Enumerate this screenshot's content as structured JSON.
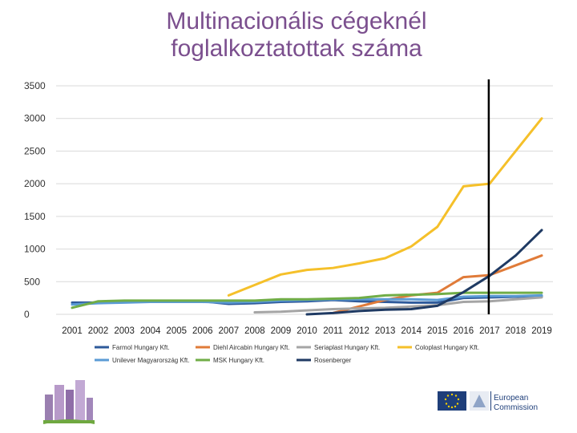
{
  "title_line1": "Multinacionális cégeknél",
  "title_line2": "foglalkoztatottak száma",
  "chart_data": {
    "type": "line",
    "x": [
      2001,
      2002,
      2003,
      2004,
      2005,
      2006,
      2007,
      2008,
      2009,
      2010,
      2011,
      2012,
      2013,
      2014,
      2015,
      2016,
      2017,
      2018,
      2019
    ],
    "x_tick_labels": [
      "2001",
      "2002",
      "2003",
      "2004",
      "2005",
      "2006",
      "2007",
      "2008",
      "2009",
      "2010",
      "2011",
      "2012",
      "2013",
      "2014",
      "2015",
      "2016",
      "2017",
      "2018",
      "2019"
    ],
    "ylim": [
      0,
      3500
    ],
    "y_ticks": [
      0,
      500,
      1000,
      1500,
      2000,
      2500,
      3000,
      3500
    ],
    "y_tick_labels": [
      "0",
      "500",
      "1000",
      "1500",
      "2000",
      "2500",
      "3000",
      "3500"
    ],
    "grid": "horizontal",
    "legend_position": "bottom",
    "series": [
      {
        "name": "Farmol Hungary Kft.",
        "color": "#2e5a9a",
        "values": [
          180,
          180,
          200,
          200,
          200,
          200,
          160,
          170,
          190,
          200,
          220,
          200,
          190,
          180,
          180,
          250,
          260,
          270,
          280
        ]
      },
      {
        "name": "Diehl Aircabin Hungary Kft.",
        "color": "#e07b39",
        "values": [
          null,
          null,
          null,
          null,
          null,
          null,
          null,
          null,
          null,
          null,
          20,
          120,
          220,
          290,
          330,
          570,
          600,
          750,
          900
        ]
      },
      {
        "name": "Seriaplast Hungary Kft.",
        "color": "#a5a5a5",
        "values": [
          null,
          null,
          null,
          null,
          null,
          null,
          null,
          30,
          40,
          60,
          80,
          90,
          100,
          120,
          140,
          190,
          200,
          230,
          260
        ]
      },
      {
        "name": "Coloplast Hungary Kft.",
        "color": "#f5c02a",
        "values": [
          null,
          null,
          null,
          null,
          null,
          null,
          290,
          450,
          610,
          680,
          710,
          780,
          860,
          1040,
          1340,
          1960,
          2000,
          2500,
          3000
        ]
      },
      {
        "name": "Unilever Magyarország Kft.",
        "color": "#5b9bd5",
        "values": [
          150,
          170,
          180,
          190,
          190,
          190,
          180,
          190,
          210,
          220,
          230,
          230,
          230,
          230,
          220,
          270,
          280,
          280,
          290
        ]
      },
      {
        "name": "MSK Hungary Kft.",
        "color": "#70ad47",
        "values": [
          100,
          200,
          210,
          210,
          210,
          210,
          210,
          210,
          230,
          230,
          240,
          250,
          290,
          300,
          310,
          330,
          330,
          330,
          330
        ]
      },
      {
        "name": "Rosenberger",
        "color": "#1f3a63",
        "values": [
          null,
          null,
          null,
          null,
          null,
          null,
          null,
          null,
          null,
          0,
          20,
          50,
          70,
          80,
          130,
          340,
          590,
          900,
          1290
        ]
      }
    ]
  },
  "footer": {
    "ec_line1": "European",
    "ec_line2": "Commission"
  }
}
